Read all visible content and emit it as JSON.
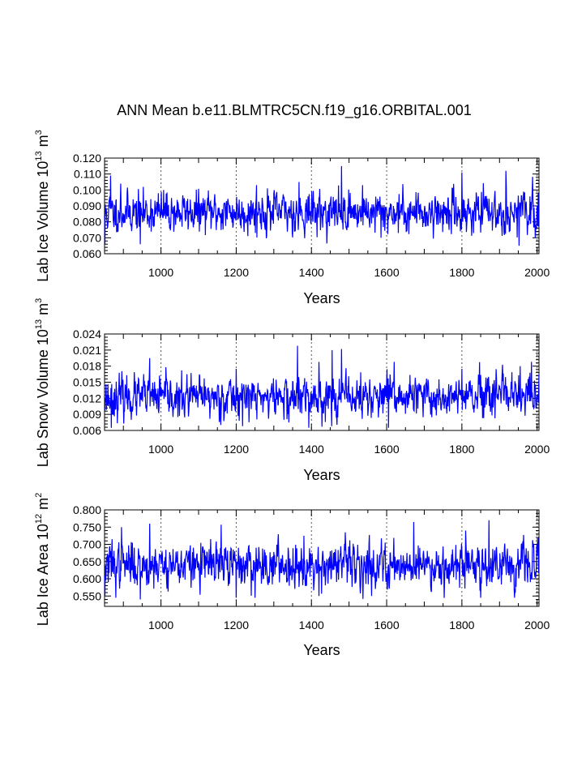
{
  "title": "ANN Mean b.e11.BLMTRC5CN.f19_g16.ORBITAL.001",
  "chart_data": [
    {
      "type": "line",
      "title": "",
      "xlabel": "Years",
      "ylabel": {
        "base": "Lab Ice Volume 10",
        "sup1": "13",
        "mid": " m",
        "sup2": "3"
      },
      "xlim": [
        850,
        2005
      ],
      "ylim": [
        0.06,
        0.12
      ],
      "xticks": [
        1000,
        1200,
        1400,
        1600,
        1800,
        2000
      ],
      "xtick_labels": [
        "1000",
        "1200",
        "1400",
        "1600",
        "1800",
        "2000"
      ],
      "yticks": [
        0.06,
        0.07,
        0.08,
        0.09,
        0.1,
        0.11,
        0.12
      ],
      "ytick_labels": [
        "0.060",
        "0.070",
        "0.080",
        "0.090",
        "0.100",
        "0.110",
        "0.120"
      ],
      "grid_x": [
        1000,
        1200,
        1400,
        1600,
        1800,
        2000
      ],
      "series": [
        {
          "name": "Lab Ice Volume",
          "color": "#0000ff",
          "x_start": 850,
          "x_end": 2005,
          "mean": 0.086,
          "sd": 0.0062,
          "ar": 0.3,
          "seed": 11,
          "spikes": [
            [
              851,
              0.066
            ],
            [
              866,
              0.109
            ],
            [
              893,
              0.104
            ],
            [
              945,
              0.066
            ],
            [
              1007,
              0.1
            ],
            [
              1254,
              0.103
            ],
            [
              1283,
              0.101
            ],
            [
              1367,
              0.105
            ],
            [
              1480,
              0.115
            ],
            [
              1536,
              0.103
            ],
            [
              1585,
              0.07
            ],
            [
              1800,
              0.111
            ],
            [
              1831,
              0.073
            ],
            [
              1917,
              0.112
            ],
            [
              1952,
              0.065
            ],
            [
              1995,
              0.07
            ],
            [
              2003,
              0.098
            ]
          ]
        }
      ]
    },
    {
      "type": "line",
      "title": "",
      "xlabel": "Years",
      "ylabel": {
        "base": "Lab Snow Volume 10",
        "sup1": "13",
        "mid": " m",
        "sup2": "3"
      },
      "xlim": [
        850,
        2005
      ],
      "ylim": [
        0.006,
        0.024
      ],
      "xticks": [
        1000,
        1200,
        1400,
        1600,
        1800,
        2000
      ],
      "xtick_labels": [
        "1000",
        "1200",
        "1400",
        "1600",
        "1800",
        "2000"
      ],
      "yticks": [
        0.006,
        0.009,
        0.012,
        0.015,
        0.018,
        0.021,
        0.024
      ],
      "ytick_labels": [
        "0.006",
        "0.009",
        "0.012",
        "0.015",
        "0.018",
        "0.021",
        "0.024"
      ],
      "grid_x": [
        1000,
        1200,
        1400,
        1600,
        1800,
        2000
      ],
      "series": [
        {
          "name": "Lab Snow Volume",
          "color": "#0000ff",
          "x_start": 850,
          "x_end": 2005,
          "mean": 0.0122,
          "sd": 0.0019,
          "ar": 0.3,
          "seed": 23,
          "spikes": [
            [
              868,
              0.0065
            ],
            [
              970,
              0.0195
            ],
            [
              1045,
              0.0085
            ],
            [
              1200,
              0.0175
            ],
            [
              1340,
              0.0075
            ],
            [
              1363,
              0.0218
            ],
            [
              1393,
              0.0065
            ],
            [
              1420,
              0.0188
            ],
            [
              1455,
              0.021
            ],
            [
              1480,
              0.0212
            ],
            [
              1605,
              0.0065
            ],
            [
              1620,
              0.0188
            ],
            [
              1800,
              0.0175
            ],
            [
              1955,
              0.018
            ],
            [
              1985,
              0.0188
            ]
          ]
        }
      ]
    },
    {
      "type": "line",
      "title": "",
      "xlabel": "Years",
      "ylabel": {
        "base": "Lab Ice Area 10",
        "sup1": "12",
        "mid": " m",
        "sup2": "2"
      },
      "xlim": [
        850,
        2005
      ],
      "ylim": [
        0.52,
        0.8
      ],
      "xticks": [
        1000,
        1200,
        1400,
        1600,
        1800,
        2000
      ],
      "xtick_labels": [
        "1000",
        "1200",
        "1400",
        "1600",
        "1800",
        "2000"
      ],
      "yticks": [
        0.55,
        0.6,
        0.65,
        0.7,
        0.75,
        0.8
      ],
      "ytick_labels": [
        "0.550",
        "0.600",
        "0.650",
        "0.700",
        "0.750",
        "0.800"
      ],
      "grid_x": [
        1000,
        1200,
        1400,
        1600,
        1800,
        2000
      ],
      "series": [
        {
          "name": "Lab Ice Area",
          "color": "#0000ff",
          "x_start": 850,
          "x_end": 2005,
          "mean": 0.641,
          "sd": 0.031,
          "ar": 0.3,
          "seed": 37,
          "spikes": [
            [
              851,
              0.55
            ],
            [
              870,
              0.715
            ],
            [
              880,
              0.545
            ],
            [
              895,
              0.75
            ],
            [
              945,
              0.54
            ],
            [
              970,
              0.76
            ],
            [
              1160,
              0.757
            ],
            [
              1200,
              0.545
            ],
            [
              1250,
              0.545
            ],
            [
              1380,
              0.725
            ],
            [
              1420,
              0.55
            ],
            [
              1490,
              0.735
            ],
            [
              1560,
              0.55
            ],
            [
              1672,
              0.765
            ],
            [
              1810,
              0.74
            ],
            [
              1850,
              0.545
            ],
            [
              1872,
              0.77
            ],
            [
              1940,
              0.545
            ],
            [
              2003,
              0.72
            ]
          ]
        }
      ]
    }
  ]
}
